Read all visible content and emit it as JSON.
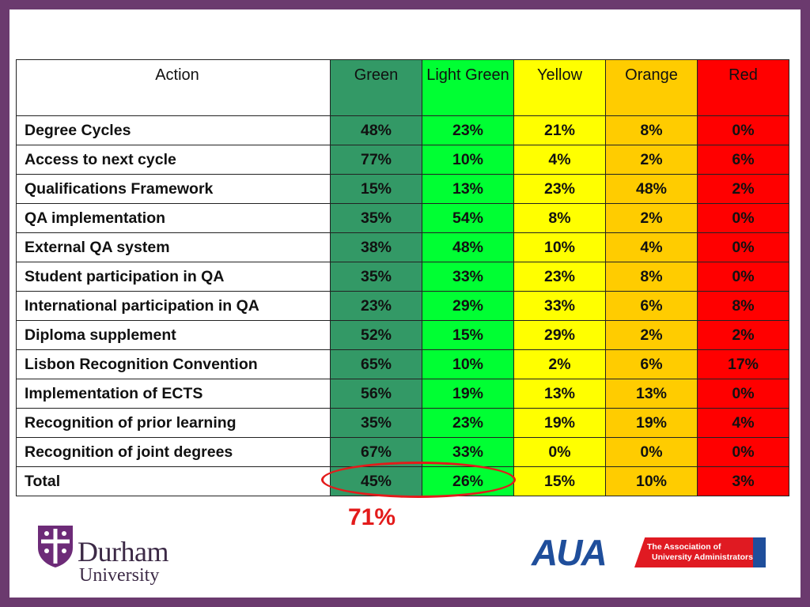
{
  "table": {
    "headers": [
      "Action",
      "Green",
      "Light Green",
      "Yellow",
      "Orange",
      "Red"
    ],
    "rows": [
      {
        "action": "Degree Cycles",
        "values": [
          "48%",
          "23%",
          "21%",
          "8%",
          "0%"
        ]
      },
      {
        "action": "Access to next cycle",
        "values": [
          "77%",
          "10%",
          "4%",
          "2%",
          "6%"
        ]
      },
      {
        "action": "Qualifications Framework",
        "values": [
          "15%",
          "13%",
          "23%",
          "48%",
          "2%"
        ]
      },
      {
        "action": "QA implementation",
        "values": [
          "35%",
          "54%",
          "8%",
          "2%",
          "0%"
        ]
      },
      {
        "action": "External QA system",
        "values": [
          "38%",
          "48%",
          "10%",
          "4%",
          "0%"
        ]
      },
      {
        "action": "Student participation in QA",
        "values": [
          "35%",
          "33%",
          "23%",
          "8%",
          "0%"
        ]
      },
      {
        "action": "International participation in QA",
        "values": [
          "23%",
          "29%",
          "33%",
          "6%",
          "8%"
        ]
      },
      {
        "action": "Diploma supplement",
        "values": [
          "52%",
          "15%",
          "29%",
          "2%",
          "2%"
        ]
      },
      {
        "action": "Lisbon Recognition Convention",
        "values": [
          "65%",
          "10%",
          "2%",
          "6%",
          "17%"
        ]
      },
      {
        "action": "Implementation of ECTS",
        "values": [
          "56%",
          "19%",
          "13%",
          "13%",
          "0%"
        ]
      },
      {
        "action": "Recognition of prior learning",
        "values": [
          "35%",
          "23%",
          "19%",
          "19%",
          "4%"
        ]
      },
      {
        "action": "Recognition of joint degrees",
        "values": [
          "67%",
          "33%",
          "0%",
          "0%",
          "0%"
        ]
      },
      {
        "action": "Total",
        "values": [
          "45%",
          "26%",
          "15%",
          "10%",
          "3%"
        ]
      }
    ]
  },
  "annotation": {
    "sum_label": "71%"
  },
  "logos": {
    "durham": {
      "name": "Durham",
      "subtitle": "University"
    },
    "aua": {
      "letters": "AUA",
      "line1": "The Association of",
      "line2": "University Administrators"
    }
  },
  "colors": {
    "frame": "#6b3a6e",
    "green": "#339966",
    "light_green": "#00ff33",
    "yellow": "#ffff00",
    "orange": "#ffcc00",
    "red": "#ff0000",
    "annotation": "#e31b1b"
  }
}
